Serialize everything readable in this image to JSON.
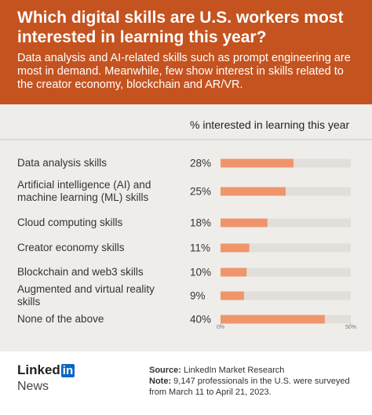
{
  "chart_data": {
    "type": "bar",
    "orientation": "horizontal",
    "title": "Which digital skills are U.S. workers most interested in learning this year?",
    "subtitle": "Data analysis and AI-related skills such as prompt engineering are most in demand. Meanwhile, few show interest in skills related to the creator economy, blockchain and AR/VR.",
    "x_label": "% interested in learning this year",
    "categories": [
      "Data analysis skills",
      "Artificial intelligence (AI) and machine learning (ML) skills",
      "Cloud computing skills",
      "Creator economy skills",
      "Blockchain and web3 skills",
      "Augmented and virtual reality skills",
      "None of the above"
    ],
    "values": [
      28,
      25,
      18,
      11,
      10,
      9,
      40
    ],
    "value_labels": [
      "28%",
      "25%",
      "18%",
      "11%",
      "10%",
      "9%",
      "40%"
    ],
    "color": "#f0956b",
    "track_color": "#e2ded9",
    "xlim": [
      0,
      50
    ],
    "xticks": [
      {
        "value": 0,
        "label": "0%"
      },
      {
        "value": 50,
        "label": "50%"
      }
    ],
    "source_label": "Source:",
    "source": "LinkedIn Market Research",
    "note_label": "Note:",
    "note": "9,147 professionals in the U.S. were surveyed from March 11 to April 21, 2023."
  },
  "brand": {
    "name": "Linked",
    "badge": "in",
    "section": "News"
  }
}
